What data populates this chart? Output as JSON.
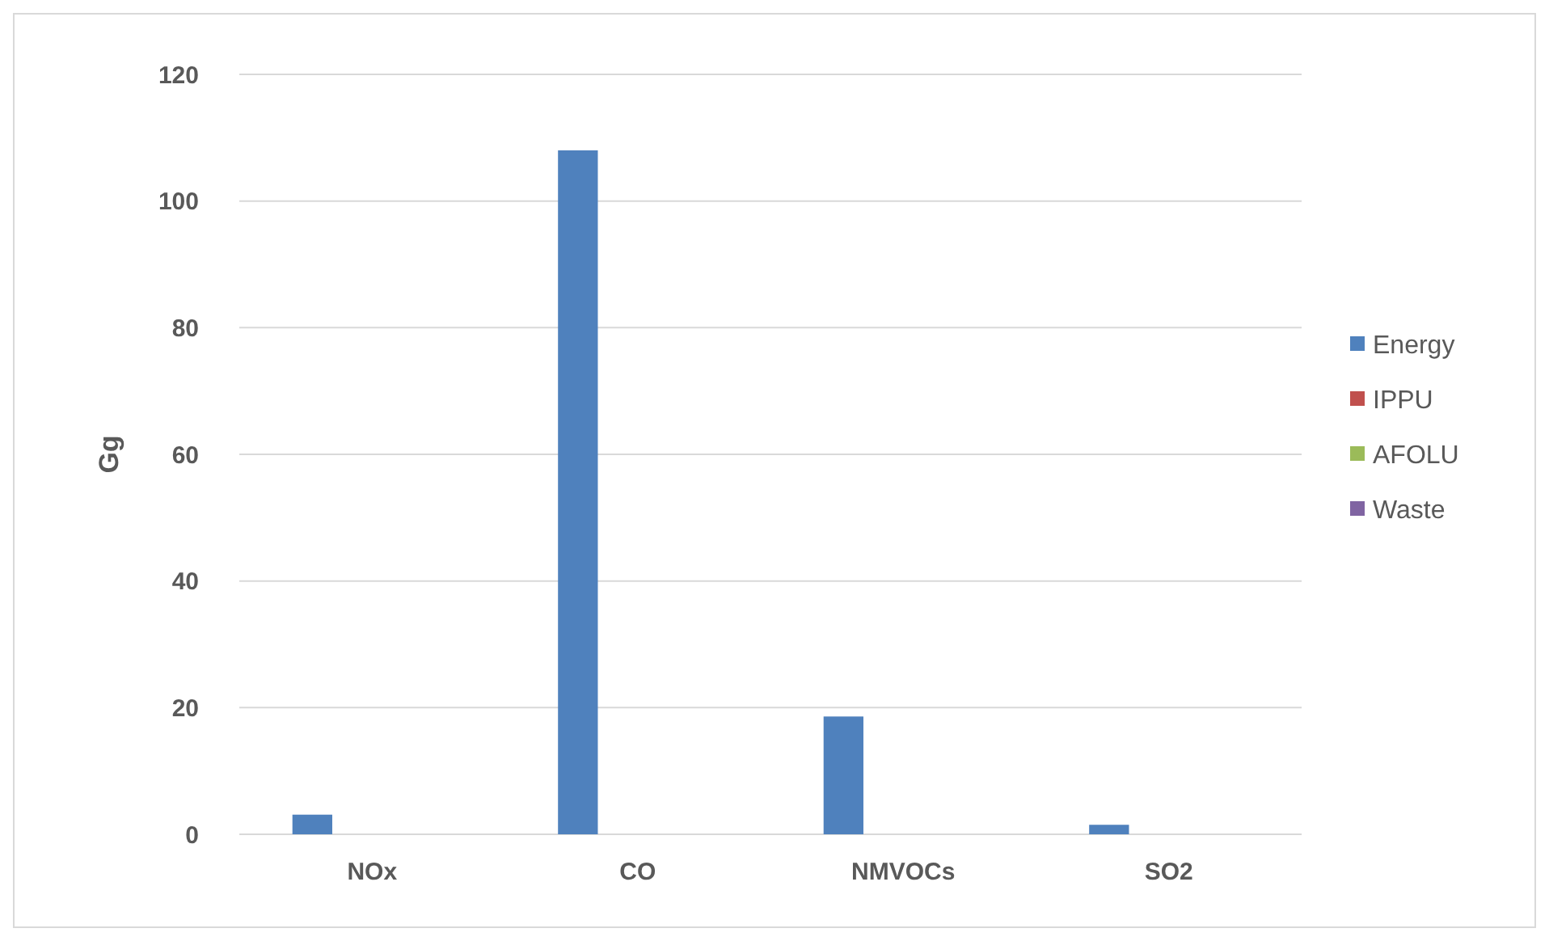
{
  "chart_data": {
    "type": "bar",
    "ylabel": "Gg",
    "categories": [
      "NOx",
      "CO",
      "NMVOCs",
      "SO2"
    ],
    "series": [
      {
        "name": "Energy",
        "color": "#4f81bd",
        "values": [
          3.1,
          108,
          18.6,
          1.5
        ]
      },
      {
        "name": "IPPU",
        "color": "#c0504d",
        "values": [
          0,
          0,
          0,
          0
        ]
      },
      {
        "name": "AFOLU",
        "color": "#9bbb59",
        "values": [
          0,
          0,
          0,
          0
        ]
      },
      {
        "name": "Waste",
        "color": "#8064a2",
        "values": [
          0,
          0,
          0,
          0
        ]
      }
    ],
    "ylim": [
      0,
      120
    ],
    "yticks": [
      0,
      20,
      40,
      60,
      80,
      100,
      120
    ],
    "grid": "y",
    "legend": "right"
  }
}
